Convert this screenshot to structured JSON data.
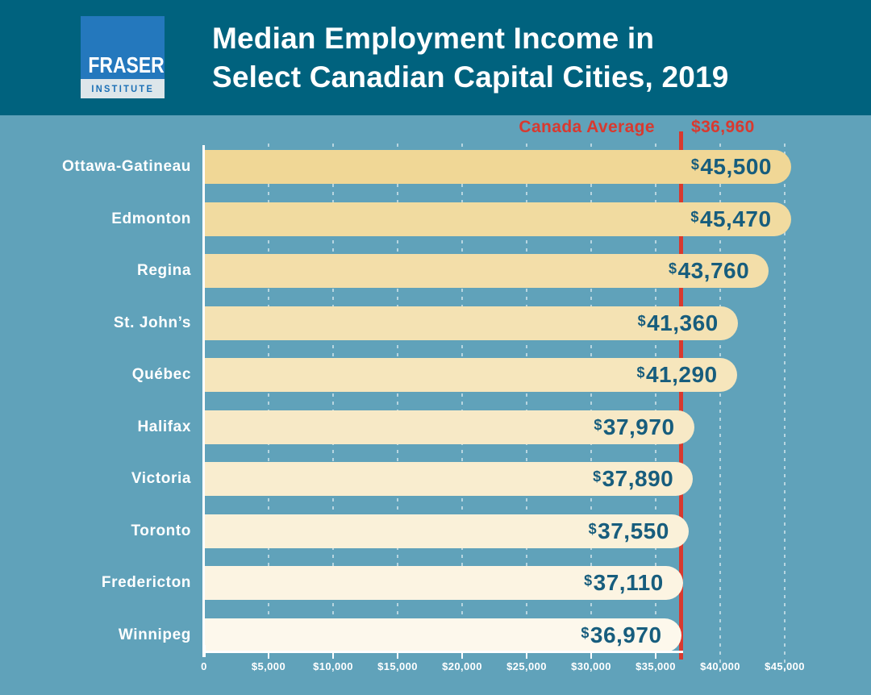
{
  "header": {
    "logo": {
      "name": "FRASER",
      "subtitle": "INSTITUTE"
    },
    "title_line1": "Median Employment Income in",
    "title_line2": "Select Canadian Capital Cities, 2019"
  },
  "chart_data": {
    "type": "bar",
    "orientation": "horizontal",
    "title": "Median Employment Income in Select Canadian Capital Cities, 2019",
    "categories": [
      "Ottawa-Gatineau",
      "Edmonton",
      "Regina",
      "St. John’s",
      "Québec",
      "Halifax",
      "Victoria",
      "Toronto",
      "Fredericton",
      "Winnipeg"
    ],
    "values": [
      45500,
      45470,
      43760,
      41360,
      41290,
      37970,
      37890,
      37550,
      37110,
      36970
    ],
    "values_display": [
      "45,500",
      "45,470",
      "43,760",
      "41,360",
      "41,290",
      "37,970",
      "37,890",
      "37,550",
      "37,110",
      "36,970"
    ],
    "currency_prefix": "$",
    "reference_line": {
      "label": "Canada Average",
      "value": 36960,
      "display": "$36,960",
      "color": "#d8392f"
    },
    "xlim": [
      0,
      45000
    ],
    "x_ticks": [
      0,
      5000,
      10000,
      15000,
      20000,
      25000,
      30000,
      35000,
      40000,
      45000
    ],
    "x_tick_labels": [
      "0",
      "$5,000",
      "$10,000",
      "$15,000",
      "$20,000",
      "$25,000",
      "$30,000",
      "$35,000",
      "$40,000",
      "$45,000"
    ],
    "grid": "dashed-vertical",
    "legend": "none",
    "bar_colors": [
      "#f0d796",
      "#f1dba0",
      "#f3dea9",
      "#f4e2b3",
      "#f6e6bc",
      "#f7e9c6",
      "#f9edcf",
      "#faf1d9",
      "#fcf4e2",
      "#fdf8ec"
    ],
    "colors": {
      "header_background": "#00627e",
      "chart_background": "#60a2ba",
      "value_label": "#175d7d",
      "category_label": "#ffffff",
      "axis": "#ffffff",
      "logo_blue": "#2478bd"
    }
  }
}
